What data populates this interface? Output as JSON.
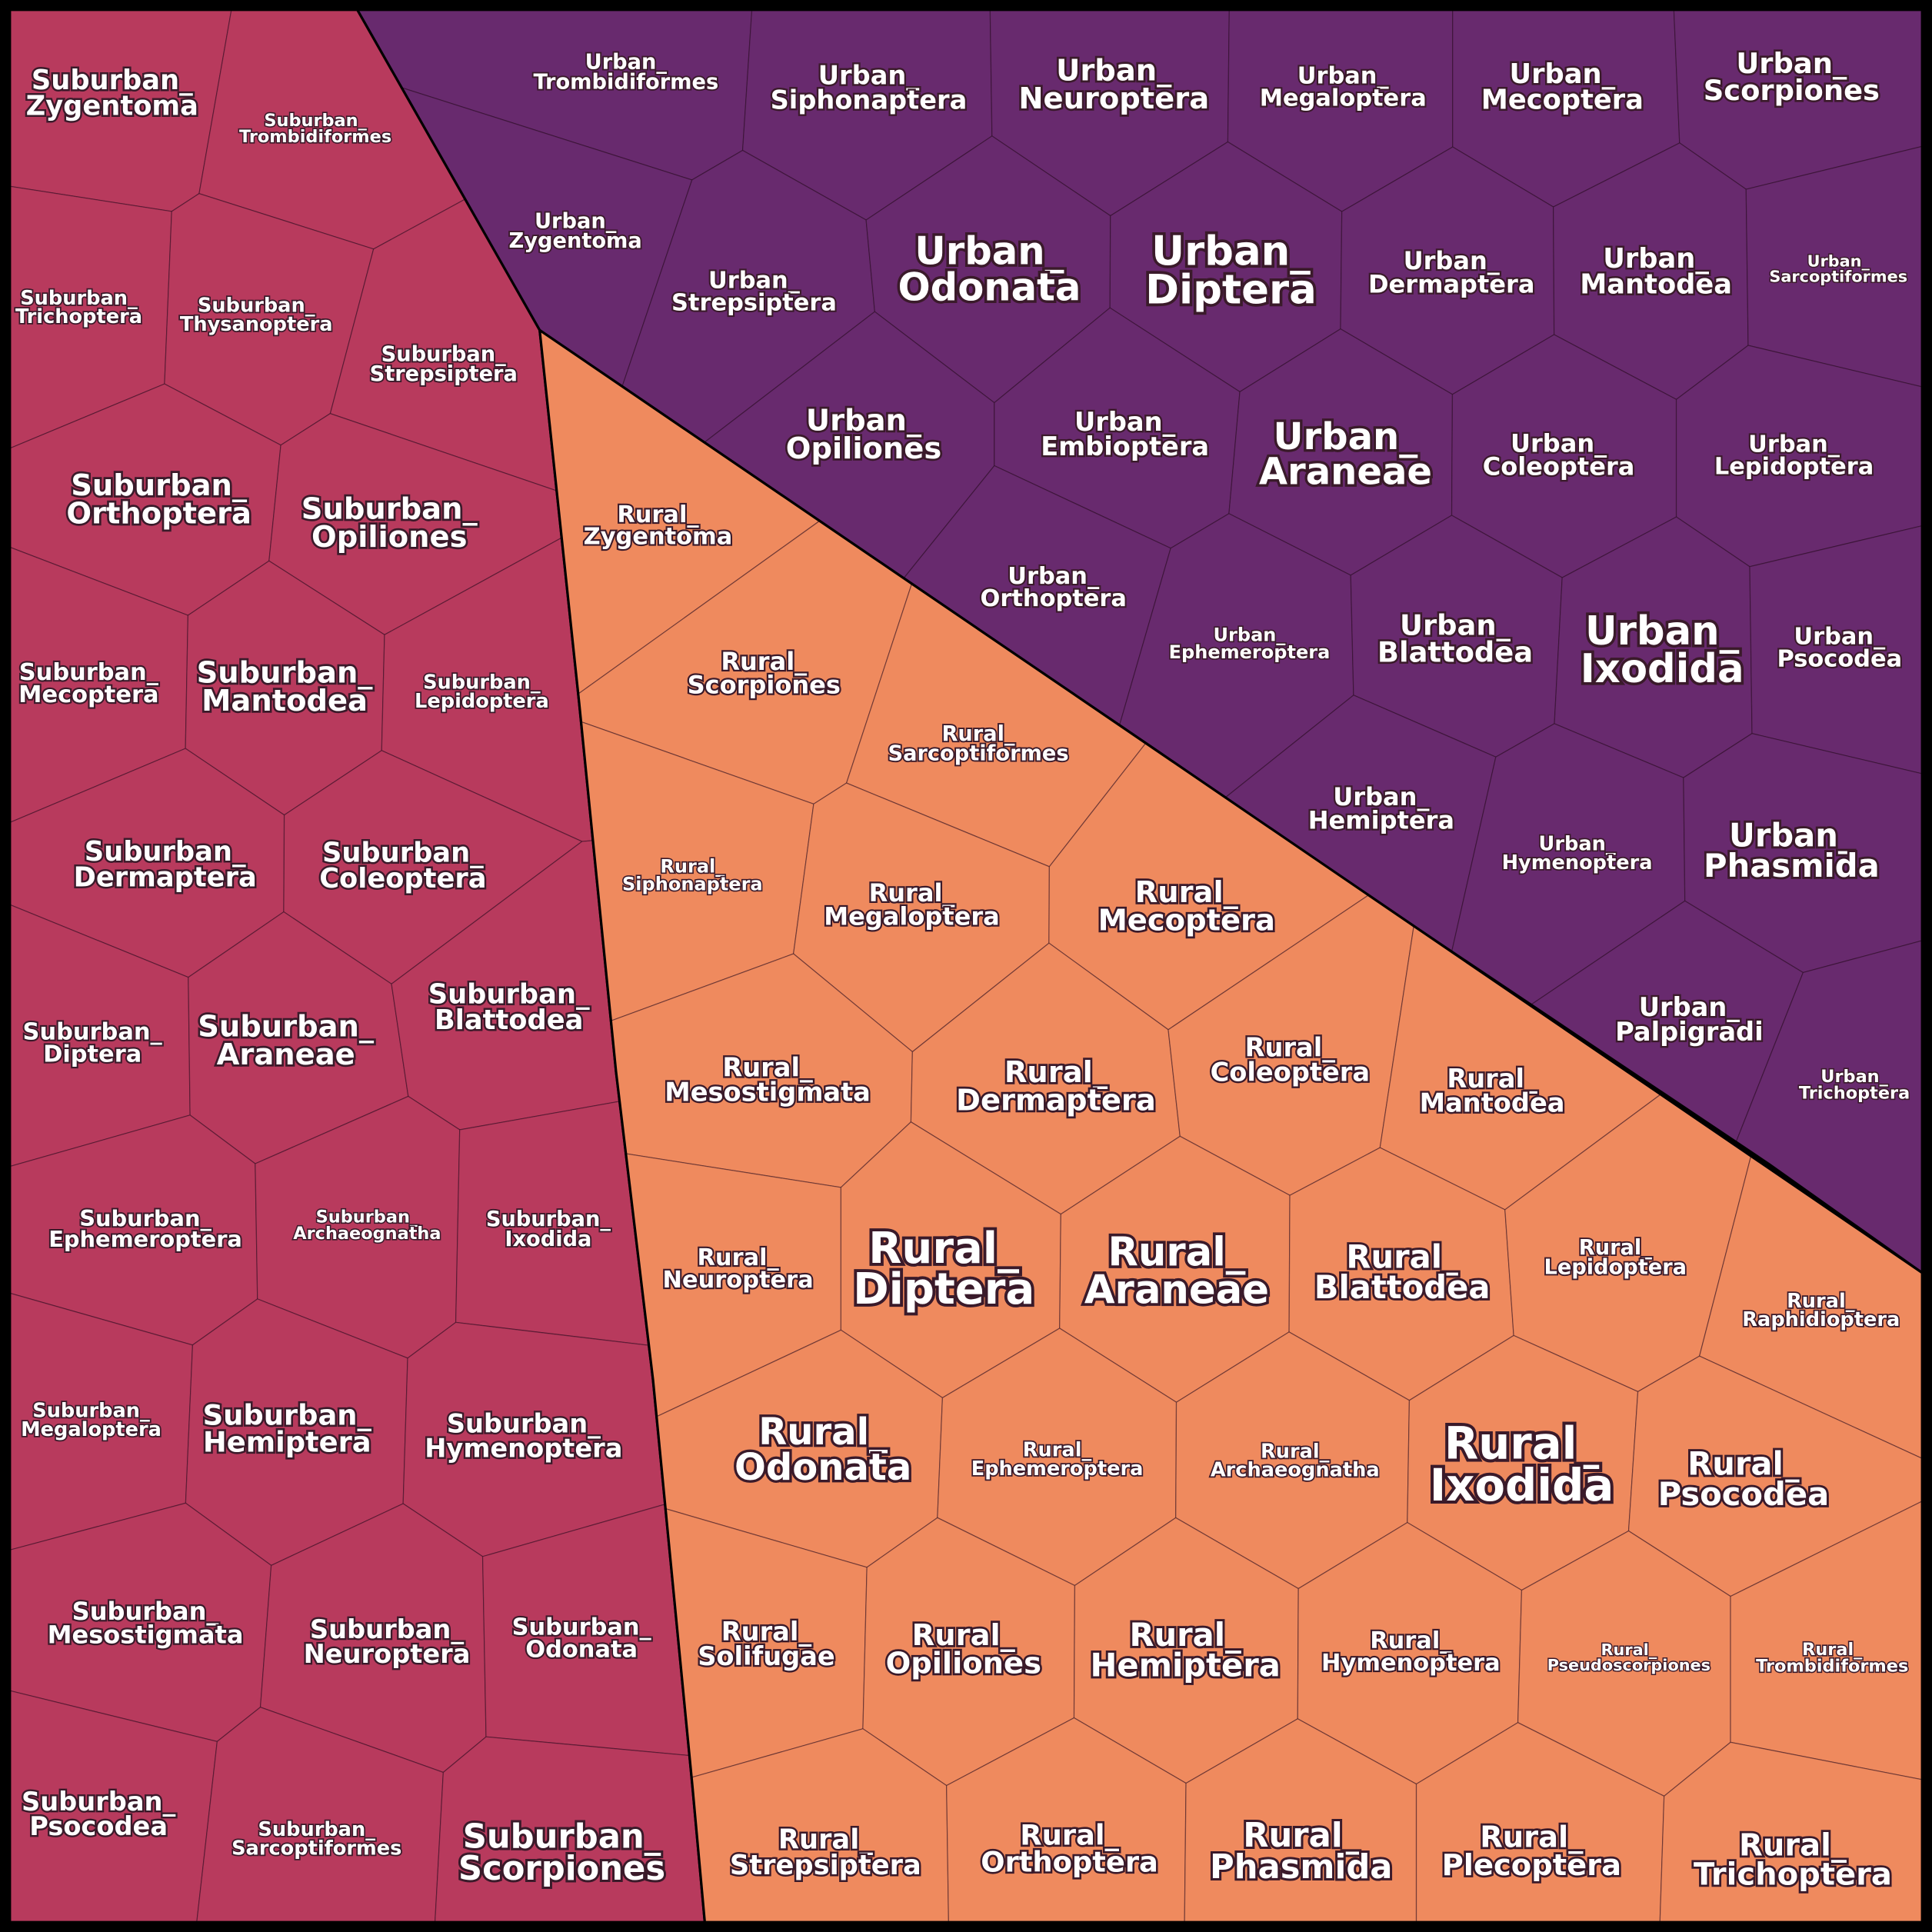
{
  "groups": [
    {
      "color": "#682a6e",
      "cells": [
        "Urban_Trombidiformes",
        "Urban_Siphonaptera",
        "Urban_Neuroptera",
        "Urban_Megaloptera",
        "Urban_Mecoptera",
        "Urban_Scorpiones",
        "Urban_Zygentoma",
        "Urban_Strepsiptera",
        "Urban_Odonata",
        "Urban_Diptera",
        "Urban_Dermaptera",
        "Urban_Mantodea",
        "Urban_Sarcoptiformes",
        "Urban_Opiliones",
        "Urban_Embioptera",
        "Urban_Araneae",
        "Urban_Coleoptera",
        "Urban_Lepidoptera",
        "Urban_Orthoptera",
        "Urban_Ephemeroptera",
        "Urban_Blattodea",
        "Urban_Ixodida",
        "Urban_Psocodea",
        "Urban_Hemiptera",
        "Urban_Hymenoptera",
        "Urban_Phasmida",
        "Urban_Palpigradi",
        "Urban_Trichoptera"
      ]
    },
    {
      "color": "#b83a5d",
      "cells": [
        "Suburban_Zygentoma",
        "Suburban_Trombidiformes",
        "Suburban_Trichoptera",
        "Suburban_Thysanoptera",
        "Suburban_Strepsiptera",
        "Suburban_Orthoptera",
        "Suburban_Opiliones",
        "Suburban_Mecoptera",
        "Suburban_Mantodea",
        "Suburban_Lepidoptera",
        "Suburban_Dermaptera",
        "Suburban_Coleoptera",
        "Suburban_Diptera",
        "Suburban_Araneae",
        "Suburban_Blattodea",
        "Suburban_Ephemeroptera",
        "Suburban_Archaeognatha",
        "Suburban_Ixodida",
        "Suburban_Megaloptera",
        "Suburban_Hemiptera",
        "Suburban_Hymenoptera",
        "Suburban_Mesostigmata",
        "Suburban_Neuroptera",
        "Suburban_Odonata",
        "Suburban_Psocodea",
        "Suburban_Sarcoptiformes",
        "Suburban_Scorpiones"
      ]
    },
    {
      "color": "#ef8a5e",
      "cells": [
        "Rural_Zygentoma",
        "Rural_Scorpiones",
        "Rural_Sarcoptiformes",
        "Rural_Siphonaptera",
        "Rural_Megaloptera",
        "Rural_Mecoptera",
        "Rural_Mesostigmata",
        "Rural_Dermaptera",
        "Rural_Coleoptera",
        "Rural_Mantodea",
        "Rural_Neuroptera",
        "Rural_Diptera",
        "Rural_Araneae",
        "Rural_Blattodea",
        "Rural_Lepidoptera",
        "Rural_Raphidioptera",
        "Rural_Odonata",
        "Rural_Ephemeroptera",
        "Rural_Archaeognatha",
        "Rural_Ixodida",
        "Rural_Psocodea",
        "Rural_Solifugae",
        "Rural_Opiliones",
        "Rural_Hemiptera",
        "Rural_Hymenoptera",
        "Rural_Pseudoscorpiones",
        "Rural_Trombidiformes",
        "Rural_Strepsiptera",
        "Rural_Orthoptera",
        "Rural_Phasmida",
        "Rural_Plecoptera",
        "Rural_Trichoptera"
      ]
    }
  ]
}
